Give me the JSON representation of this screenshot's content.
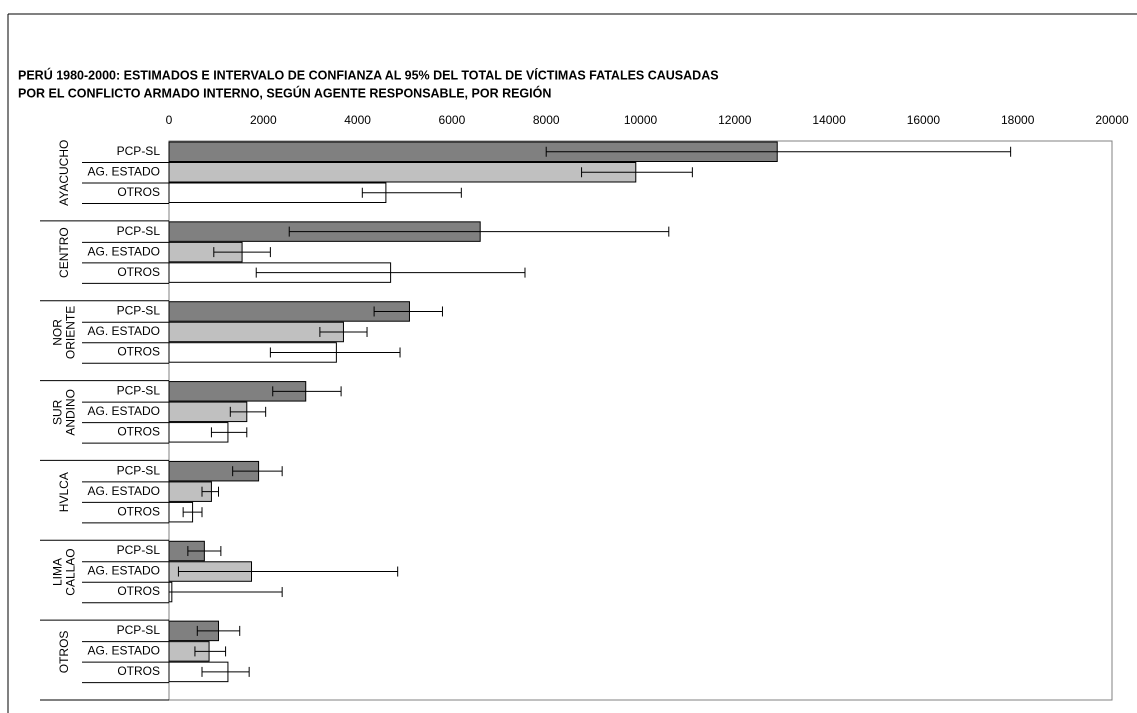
{
  "chart_data": {
    "type": "bar",
    "orientation": "horizontal",
    "title": [
      "PERÚ 1980-2000: ESTIMADOS E INTERVALO DE CONFIANZA AL 95% DEL TOTAL DE VÍCTIMAS FATALES CAUSADAS",
      "POR EL CONFLICTO ARMADO INTERNO, SEGÚN AGENTE RESPONSABLE, POR REGIÓN"
    ],
    "categories": [
      [
        "AYACUCHO"
      ],
      [
        "CENTRO"
      ],
      [
        "NOR",
        "ORIENTE"
      ],
      [
        "SUR",
        "ANDINO"
      ],
      [
        "HVLCA"
      ],
      [
        "LIMA",
        "CALLAO"
      ],
      [
        "OTROS"
      ]
    ],
    "series": [
      {
        "name": "PCP-SL",
        "color": "#808080",
        "values": [
          12900,
          6600,
          5100,
          2900,
          1900,
          750,
          1050
        ],
        "ci_low": [
          8000,
          2550,
          4350,
          2200,
          1350,
          400,
          600
        ],
        "ci_high": [
          17850,
          10600,
          5800,
          3650,
          2400,
          1100,
          1500
        ]
      },
      {
        "name": "AG. ESTADO",
        "color": "#c0c0c0",
        "values": [
          9900,
          1550,
          3700,
          1650,
          900,
          1750,
          850
        ],
        "ci_low": [
          8750,
          950,
          3200,
          1300,
          700,
          200,
          550
        ],
        "ci_high": [
          11100,
          2150,
          4200,
          2050,
          1050,
          4850,
          1200
        ]
      },
      {
        "name": "OTROS",
        "color": "#ffffff",
        "values": [
          4600,
          4700,
          3550,
          1250,
          500,
          60,
          1250
        ],
        "ci_low": [
          4100,
          1850,
          2150,
          900,
          300,
          0,
          700
        ],
        "ci_high": [
          6200,
          7550,
          4900,
          1650,
          700,
          2400,
          1700
        ]
      }
    ],
    "xlim": [
      0,
      20000
    ],
    "xticks": [
      0,
      2000,
      4000,
      6000,
      8000,
      10000,
      12000,
      14000,
      16000,
      18000,
      20000
    ],
    "grid": false
  }
}
